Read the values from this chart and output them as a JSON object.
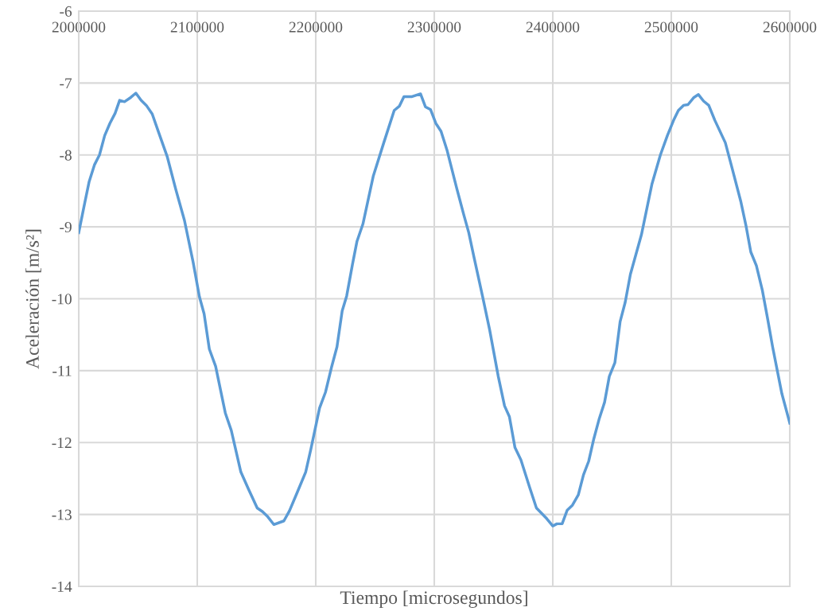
{
  "chart_data": {
    "type": "line",
    "xlabel": "Tiempo [microsegundos]",
    "ylabel": "Aceleración [m/s²]",
    "xlim": [
      2000000,
      2600000
    ],
    "xticks": [
      2000000,
      2100000,
      2200000,
      2300000,
      2400000,
      2500000,
      2600000
    ],
    "ylim": [
      -14,
      -6
    ],
    "yticks": [
      -14,
      -13,
      -12,
      -11,
      -10,
      -9,
      -8,
      -7,
      -6
    ],
    "grid": true,
    "marker": "none",
    "line_style": "solid",
    "series": [
      {
        "color": "#5b9bd5",
        "x": [
          2000000,
          2004400,
          2008800,
          2013200,
          2017500,
          2021900,
          2026300,
          2030700,
          2034500,
          2038600,
          2043900,
          2048200,
          2052600,
          2057000,
          2062000,
          2067300,
          2074600,
          2081900,
          2089200,
          2096500,
          2101800,
          2105800,
          2110200,
          2115500,
          2123700,
          2128700,
          2136800,
          2143300,
          2150600,
          2155000,
          2159400,
          2164600,
          2173100,
          2177800,
          2184200,
          2191500,
          2195900,
          2203200,
          2208200,
          2213500,
          2217900,
          2222300,
          2226100,
          2231000,
          2234800,
          2239800,
          2248600,
          2257400,
          2266200,
          2270600,
          2274400,
          2280800,
          2288400,
          2292500,
          2296900,
          2301300,
          2305700,
          2310700,
          2318900,
          2324700,
          2329100,
          2333500,
          2340800,
          2346700,
          2354000,
          2359300,
          2363400,
          2368100,
          2373100,
          2380400,
          2386200,
          2395000,
          2400000,
          2403500,
          2407900,
          2412200,
          2416600,
          2421500,
          2425900,
          2430300,
          2434600,
          2439000,
          2443700,
          2447700,
          2452400,
          2456800,
          2461100,
          2465500,
          2474800,
          2483600,
          2490800,
          2496700,
          2501900,
          2506000,
          2510300,
          2514100,
          2519100,
          2522900,
          2527200,
          2531600,
          2536800,
          2545600,
          2551400,
          2558700,
          2563100,
          2567100,
          2571800,
          2576800,
          2581200,
          2585500,
          2593300,
          2600000
        ],
        "values": [
          -9.08,
          -8.72,
          -8.37,
          -8.14,
          -8.0,
          -7.73,
          -7.56,
          -7.42,
          -7.24,
          -7.26,
          -7.2,
          -7.14,
          -7.24,
          -7.31,
          -7.43,
          -7.68,
          -8.02,
          -8.48,
          -8.91,
          -9.49,
          -9.97,
          -10.21,
          -10.7,
          -10.94,
          -11.59,
          -11.83,
          -12.41,
          -12.65,
          -12.91,
          -12.96,
          -13.03,
          -13.14,
          -13.09,
          -12.95,
          -12.7,
          -12.41,
          -12.09,
          -11.52,
          -11.3,
          -10.94,
          -10.67,
          -10.17,
          -9.96,
          -9.52,
          -9.2,
          -8.96,
          -8.29,
          -7.83,
          -7.38,
          -7.32,
          -7.19,
          -7.19,
          -7.15,
          -7.33,
          -7.37,
          -7.56,
          -7.67,
          -7.93,
          -8.46,
          -8.82,
          -9.08,
          -9.42,
          -9.97,
          -10.43,
          -11.08,
          -11.49,
          -11.64,
          -12.07,
          -12.24,
          -12.62,
          -12.91,
          -13.06,
          -13.16,
          -13.13,
          -13.13,
          -12.94,
          -12.87,
          -12.73,
          -12.45,
          -12.26,
          -11.95,
          -11.68,
          -11.44,
          -11.08,
          -10.89,
          -10.32,
          -10.05,
          -9.66,
          -9.11,
          -8.41,
          -8.0,
          -7.73,
          -7.52,
          -7.38,
          -7.31,
          -7.3,
          -7.2,
          -7.16,
          -7.25,
          -7.31,
          -7.52,
          -7.83,
          -8.19,
          -8.65,
          -8.99,
          -9.35,
          -9.54,
          -9.88,
          -10.27,
          -10.67,
          -11.32,
          -11.73
        ]
      }
    ]
  }
}
